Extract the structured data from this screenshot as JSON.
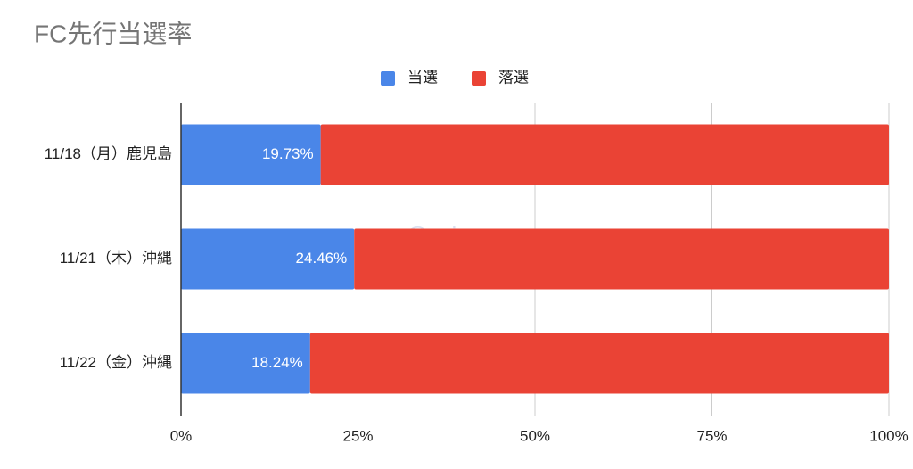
{
  "chart_data": {
    "type": "stacked_bar_horizontal",
    "title": "FC先行当選率",
    "watermark": "@rrrinxxx",
    "categories": [
      "11/18（月）鹿児島",
      "11/21（木）沖縄",
      "11/22（金）沖縄"
    ],
    "series": [
      {
        "name": "当選",
        "color": "#4a86e8",
        "values": [
          19.73,
          24.46,
          18.24
        ],
        "value_labels": [
          "19.73%",
          "24.46%",
          "18.24%"
        ]
      },
      {
        "name": "落選",
        "color": "#ea4335",
        "values": [
          80.27,
          75.54,
          81.76
        ]
      }
    ],
    "xlim": [
      0,
      100
    ],
    "xticks": [
      {
        "value": 0,
        "label": "0%"
      },
      {
        "value": 25,
        "label": "25%"
      },
      {
        "value": 50,
        "label": "50%"
      },
      {
        "value": 75,
        "label": "75%"
      },
      {
        "value": 100,
        "label": "100%"
      }
    ],
    "grid": true,
    "legend": "top"
  }
}
